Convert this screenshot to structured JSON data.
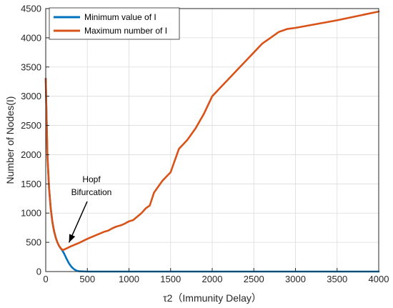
{
  "chart_data": {
    "type": "line",
    "xlabel": "τ2（Immunity Delay）",
    "ylabel": "Number of Nodes(I)",
    "xlim": [
      0,
      4000
    ],
    "ylim": [
      0,
      4500
    ],
    "xticks": [
      0,
      500,
      1000,
      1500,
      2000,
      2500,
      3000,
      3500,
      4000
    ],
    "yticks": [
      0,
      500,
      1000,
      1500,
      2000,
      2500,
      3000,
      3500,
      4000,
      4500
    ],
    "grid": true,
    "legend": "top-left",
    "annotation": {
      "lines": [
        "Hopf",
        "Bifurcation"
      ],
      "target": {
        "x": 220,
        "y": 400
      }
    },
    "series": [
      {
        "name": "Minimum value of I",
        "color": "#0072BD",
        "x": [
          0,
          20,
          40,
          60,
          80,
          100,
          120,
          140,
          160,
          180,
          200,
          220,
          250,
          280,
          310,
          340,
          370,
          400,
          500,
          1000,
          2000,
          3000,
          4000
        ],
        "y": [
          3300,
          2000,
          1420,
          1080,
          850,
          690,
          580,
          500,
          440,
          395,
          360,
          310,
          220,
          140,
          80,
          40,
          15,
          5,
          0,
          0,
          0,
          0,
          0
        ]
      },
      {
        "name": "Maximum number of I",
        "color": "#D95319",
        "x": [
          0,
          20,
          40,
          60,
          80,
          100,
          120,
          140,
          160,
          180,
          200,
          220,
          300,
          400,
          500,
          600,
          700,
          750,
          800,
          850,
          900,
          950,
          1000,
          1050,
          1100,
          1150,
          1200,
          1250,
          1300,
          1350,
          1400,
          1500,
          1600,
          1700,
          1800,
          1900,
          2000,
          2100,
          2200,
          2300,
          2400,
          2500,
          2600,
          2700,
          2800,
          2900,
          3000,
          3500,
          4000
        ],
        "y": [
          3300,
          2000,
          1420,
          1080,
          850,
          690,
          580,
          500,
          440,
          400,
          370,
          375,
          430,
          490,
          560,
          620,
          680,
          700,
          740,
          770,
          790,
          820,
          860,
          880,
          940,
          1000,
          1080,
          1130,
          1350,
          1450,
          1550,
          1700,
          2100,
          2250,
          2450,
          2700,
          3000,
          3150,
          3300,
          3450,
          3600,
          3750,
          3900,
          4000,
          4100,
          4150,
          4170,
          4300,
          4450
        ]
      }
    ]
  }
}
